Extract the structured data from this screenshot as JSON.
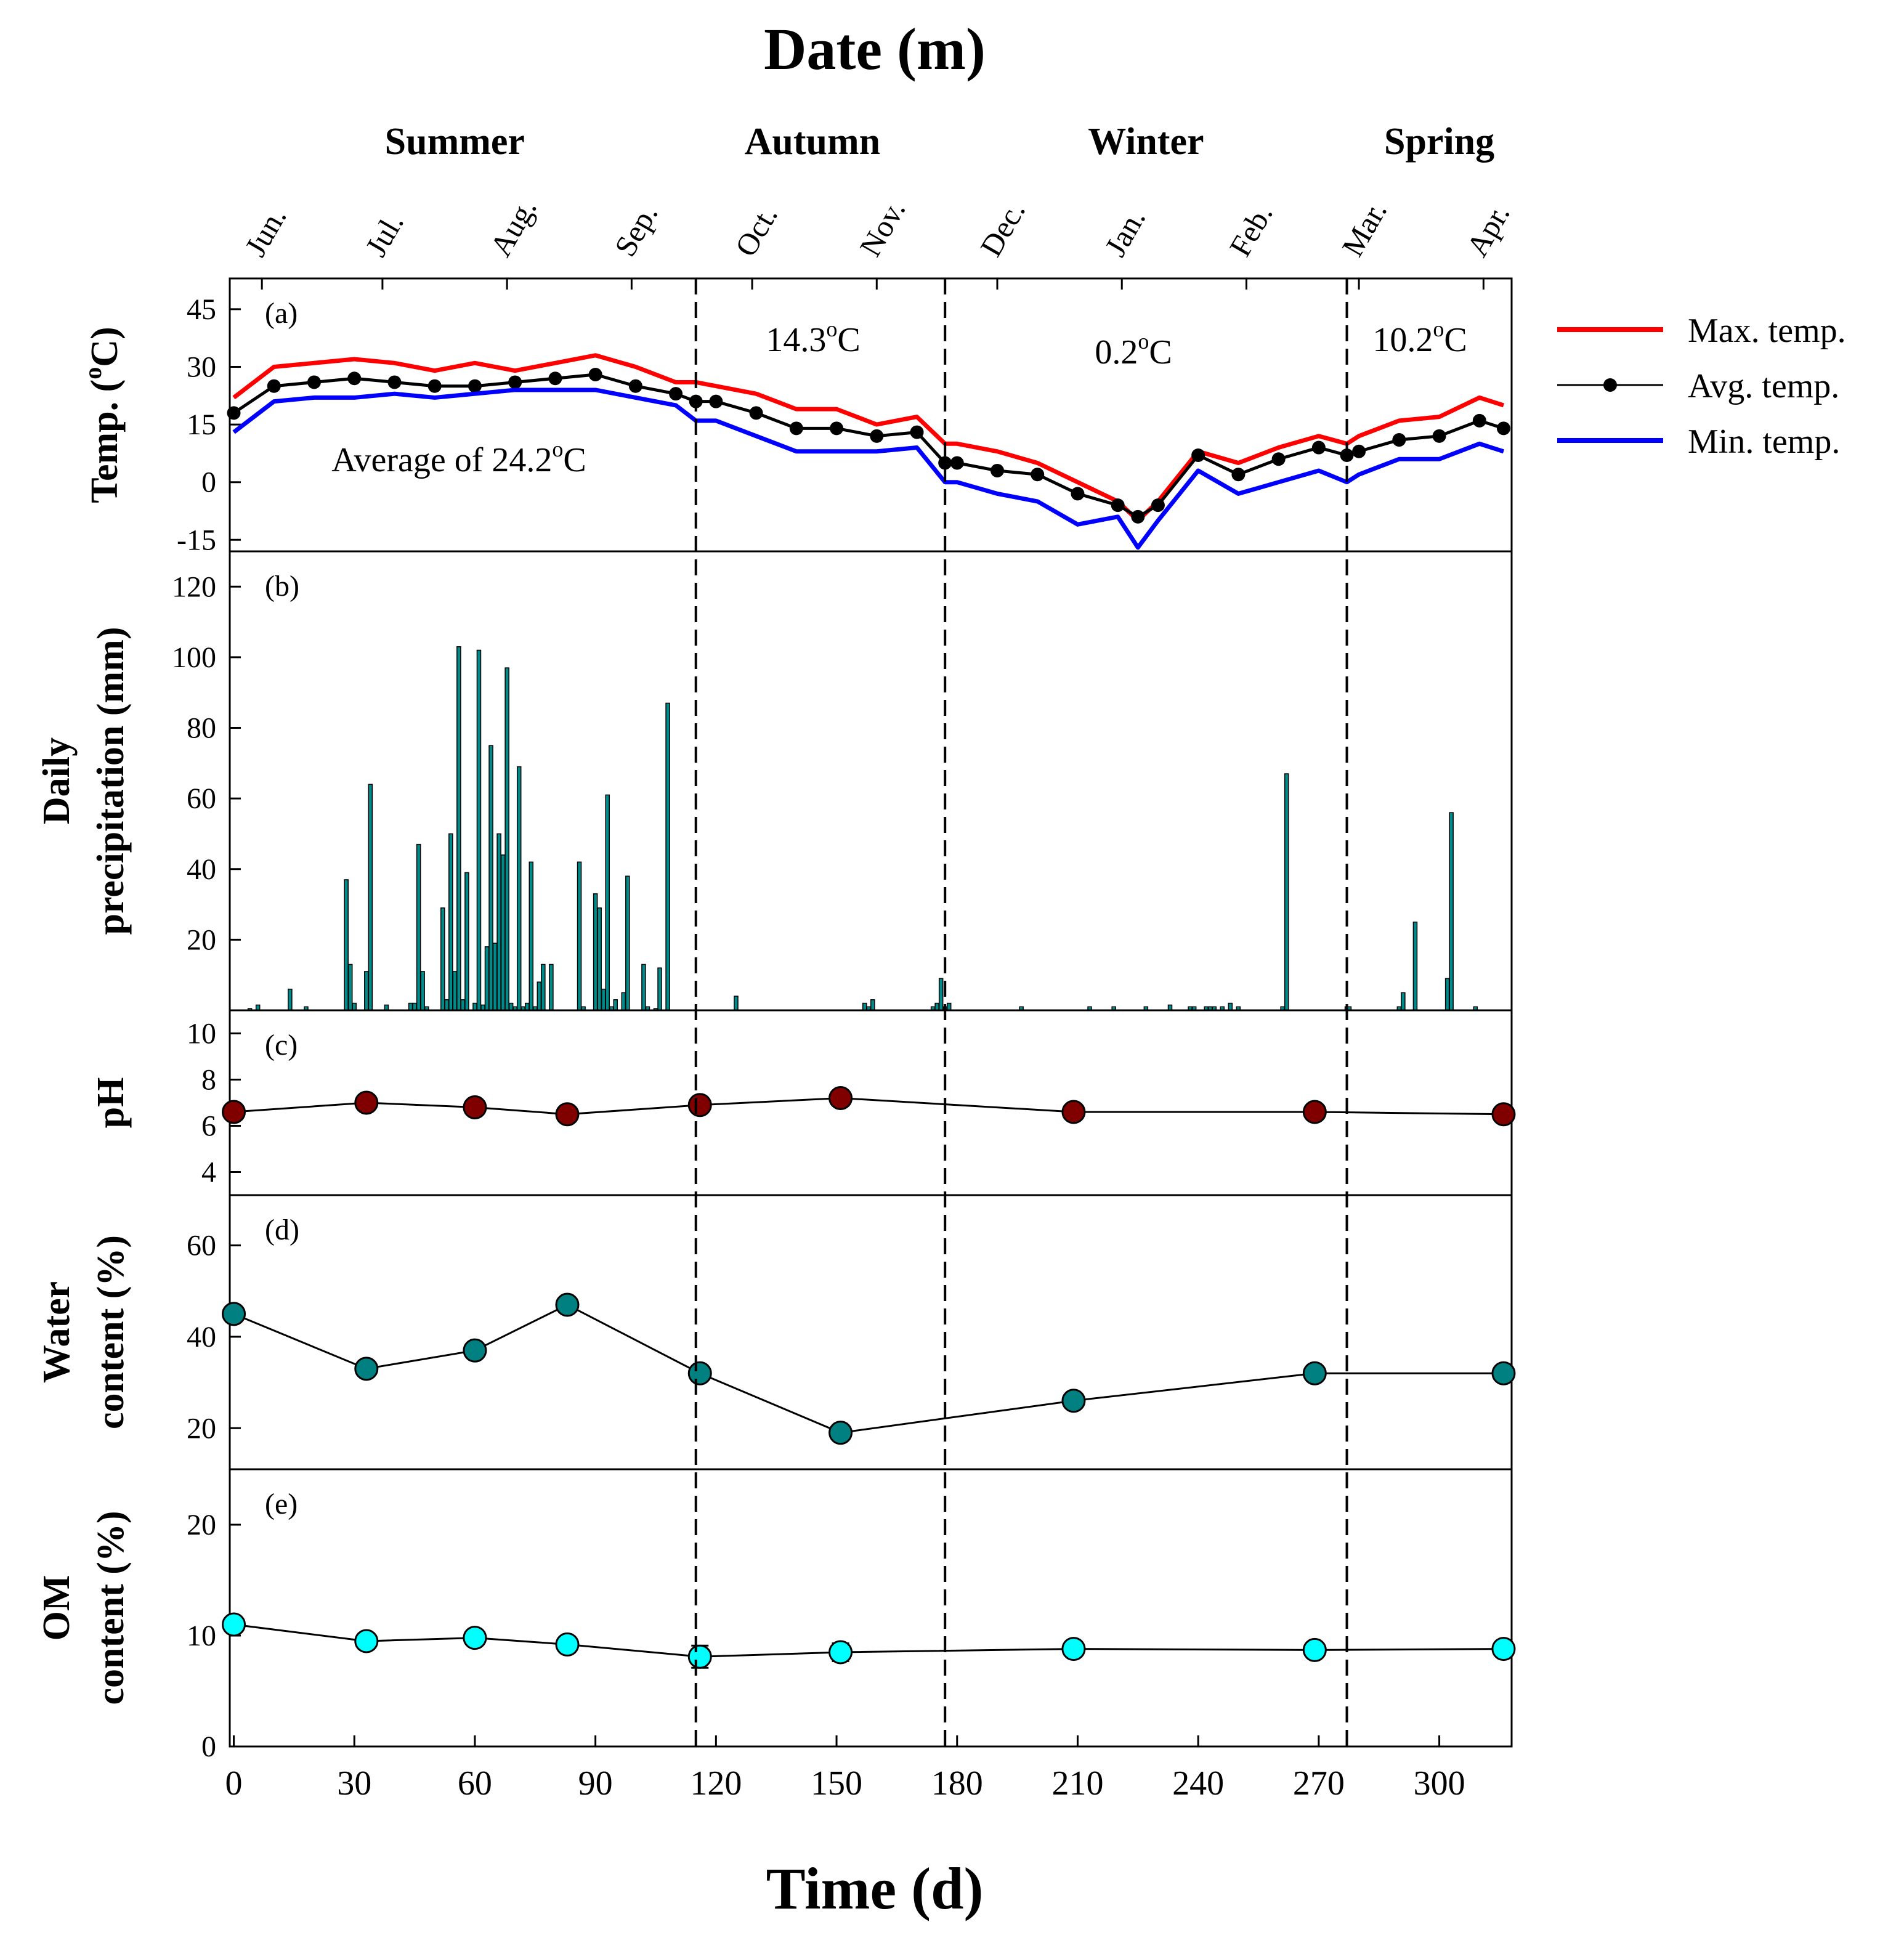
{
  "figure": {
    "top_title": "Date (m)",
    "bottom_title": "Time (d)"
  },
  "seasons": [
    {
      "label": "Summer",
      "day": 55
    },
    {
      "label": "Autumn",
      "day": 144
    },
    {
      "label": "Winter",
      "day": 227
    },
    {
      "label": "Spring",
      "day": 300
    }
  ],
  "months": [
    {
      "label": "Jun.",
      "day": 7
    },
    {
      "label": "Jul.",
      "day": 37
    },
    {
      "label": "Aug.",
      "day": 68
    },
    {
      "label": "Sep.",
      "day": 99
    },
    {
      "label": "Oct.",
      "day": 129
    },
    {
      "label": "Nov.",
      "day": 160
    },
    {
      "label": "Dec.",
      "day": 190
    },
    {
      "label": "Jan.",
      "day": 221
    },
    {
      "label": "Feb.",
      "day": 252
    },
    {
      "label": "Mar.",
      "day": 280
    },
    {
      "label": "Apr.",
      "day": 311
    }
  ],
  "season_boundaries": [
    115,
    177,
    277
  ],
  "x_axis": {
    "min": -1,
    "max": 318,
    "ticks": [
      0,
      30,
      60,
      90,
      120,
      150,
      180,
      210,
      240,
      270,
      300
    ]
  },
  "legend": [
    {
      "label": "Max. temp.",
      "color": "#ff0000",
      "marker": false
    },
    {
      "label": "Avg. temp.",
      "color": "#000000",
      "marker": true
    },
    {
      "label": "Min. temp.",
      "color": "#0000ff",
      "marker": false
    }
  ],
  "chart_data": [
    {
      "type": "line",
      "panel": "(a)",
      "title": "",
      "ylabel": "Temp. (oC)",
      "ylabel_main": "Temp. (",
      "ylabel_sup": "o",
      "ylabel_end": "C)",
      "ylim": [
        -18,
        53
      ],
      "yticks": [
        -15,
        0,
        15,
        30,
        45
      ],
      "x": [
        0,
        10,
        20,
        30,
        40,
        50,
        60,
        70,
        80,
        90,
        100,
        110,
        115,
        120,
        130,
        140,
        150,
        160,
        170,
        177,
        180,
        190,
        200,
        210,
        220,
        225,
        230,
        240,
        250,
        260,
        270,
        277,
        280,
        290,
        300,
        310,
        316
      ],
      "series": [
        {
          "name": "Max. temp.",
          "color": "#ff0000",
          "values": [
            22,
            30,
            31,
            32,
            31,
            29,
            31,
            29,
            31,
            33,
            30,
            26,
            26,
            25,
            23,
            19,
            19,
            15,
            17,
            10,
            10,
            8,
            5,
            0,
            -5,
            -10,
            -5,
            8,
            5,
            9,
            12,
            10,
            12,
            16,
            17,
            22,
            20
          ]
        },
        {
          "name": "Avg. temp.",
          "color": "#000000",
          "values": [
            18,
            25,
            26,
            27,
            26,
            25,
            25,
            26,
            27,
            28,
            25,
            23,
            21,
            21,
            18,
            14,
            14,
            12,
            13,
            5,
            5,
            3,
            2,
            -3,
            -6,
            -9,
            -6,
            7,
            2,
            6,
            9,
            7,
            8,
            11,
            12,
            16,
            14
          ]
        },
        {
          "name": "Min. temp.",
          "color": "#0000ff",
          "values": [
            13,
            21,
            22,
            22,
            23,
            22,
            23,
            24,
            24,
            24,
            22,
            20,
            16,
            16,
            12,
            8,
            8,
            8,
            9,
            0,
            0,
            -3,
            -5,
            -11,
            -9,
            -17,
            -10,
            3,
            -3,
            0,
            3,
            0,
            2,
            6,
            6,
            10,
            8
          ]
        }
      ],
      "annotations": {
        "summer_pre": "Average of 24.2",
        "autumn_pre": "14.3",
        "winter_pre": "0.2",
        "spring_pre": "10.2",
        "sup": "o",
        "unit": "C"
      }
    },
    {
      "type": "bar",
      "panel": "(b)",
      "title": "",
      "ylabel_line1": "Daily",
      "ylabel_line2": "precipitation (mm)",
      "ylim": [
        0,
        130
      ],
      "yticks": [
        20,
        40,
        60,
        80,
        100,
        120
      ],
      "x": [
        4,
        6,
        14,
        18,
        28,
        29,
        30,
        33,
        34,
        38,
        44,
        45,
        46,
        47,
        48,
        52,
        53,
        54,
        55,
        56,
        57,
        58,
        60,
        61,
        62,
        63,
        64,
        65,
        66,
        67,
        68,
        69,
        70,
        71,
        72,
        73,
        74,
        75,
        76,
        77,
        79,
        86,
        87,
        90,
        91,
        92,
        93,
        94,
        95,
        97,
        98,
        102,
        103,
        105,
        106,
        108,
        125,
        157,
        158,
        159,
        174,
        175,
        176,
        177,
        178,
        196,
        213,
        219,
        227,
        233,
        238,
        239,
        242,
        243,
        244,
        246,
        248,
        250,
        261,
        262,
        277,
        277.6,
        290,
        291,
        294,
        302,
        303,
        309
      ],
      "values": [
        0.5,
        1.5,
        6,
        1,
        37,
        13,
        2,
        11,
        64,
        1.5,
        2,
        2,
        47,
        11,
        1,
        29,
        3,
        50,
        11,
        103,
        3,
        39,
        2,
        102,
        1.5,
        18,
        75,
        19,
        50,
        44,
        97,
        2,
        1,
        69,
        1,
        2,
        42,
        1,
        8,
        13,
        13,
        42,
        1,
        33,
        29,
        6,
        61,
        1,
        3,
        5,
        38,
        13,
        1,
        0.5,
        12,
        87,
        4,
        2,
        1,
        3,
        1,
        2,
        9,
        1,
        2,
        1,
        1,
        1,
        1,
        1.5,
        1,
        1,
        1,
        1,
        1,
        1,
        2,
        1,
        1,
        67,
        1,
        1,
        1,
        5,
        25,
        9,
        56,
        1
      ]
    },
    {
      "type": "line",
      "panel": "(c)",
      "title": "",
      "ylabel": "pH",
      "ylim": [
        3,
        11
      ],
      "yticks": [
        4,
        6,
        8,
        10
      ],
      "x": [
        0,
        33,
        60,
        83,
        116,
        151,
        209,
        269,
        316
      ],
      "values": [
        6.6,
        7.0,
        6.8,
        6.5,
        6.9,
        7.2,
        6.6,
        6.6,
        6.5
      ],
      "errors": [
        0.1,
        0.1,
        0.1,
        0.1,
        0.3,
        0.1,
        0.1,
        0.1,
        0.1
      ],
      "marker_color": "#800000"
    },
    {
      "type": "line",
      "panel": "(d)",
      "title": "",
      "ylabel_line1": "Water",
      "ylabel_line2": "content (%)",
      "ylim": [
        11,
        71
      ],
      "yticks": [
        20,
        40,
        60
      ],
      "x": [
        0,
        33,
        60,
        83,
        116,
        151,
        209,
        269,
        316
      ],
      "values": [
        45,
        33,
        37,
        47,
        32,
        19,
        26,
        32,
        32
      ],
      "errors": [
        1,
        1,
        1.2,
        1,
        1,
        0.5,
        0.5,
        0.5,
        0.5
      ],
      "marker_color": "#008080"
    },
    {
      "type": "line",
      "panel": "(e)",
      "title": "",
      "ylabel_line1": "OM",
      "ylabel_line2": "content (%)",
      "ylim": [
        0,
        25
      ],
      "yticks": [
        0,
        10,
        20
      ],
      "x": [
        0,
        33,
        60,
        83,
        116,
        151,
        209,
        269,
        316
      ],
      "values": [
        11,
        9.5,
        9.8,
        9.2,
        8.1,
        8.5,
        8.8,
        8.7,
        8.8
      ],
      "errors": [
        0.3,
        0.7,
        0.5,
        0.7,
        1.0,
        0.8,
        0.3,
        0.4,
        0.3
      ],
      "marker_color": "#00ffff"
    }
  ]
}
